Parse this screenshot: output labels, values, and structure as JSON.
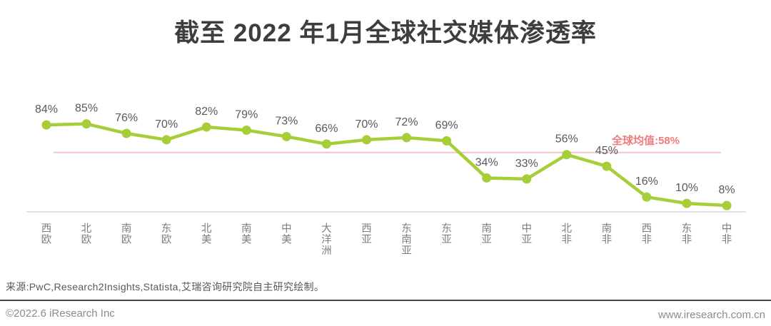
{
  "title": "截至 2022 年1月全球社交媒体渗透率",
  "chart_data": {
    "type": "line",
    "title": "截至 2022 年1月全球社交媒体渗透率",
    "categories": [
      "西欧",
      "北欧",
      "南欧",
      "东欧",
      "北美",
      "南美",
      "中美",
      "大洋洲",
      "西亚",
      "东南亚",
      "东亚",
      "南亚",
      "中亚",
      "北非",
      "南非",
      "西非",
      "东非",
      "中非"
    ],
    "values": [
      84,
      85,
      76,
      70,
      82,
      79,
      73,
      66,
      70,
      72,
      69,
      34,
      33,
      56,
      45,
      16,
      10,
      8
    ],
    "label_suffix": "%",
    "xlabel": "",
    "ylabel": "",
    "ylim": [
      0,
      100
    ],
    "grid": false,
    "legend": "none",
    "reference_line": {
      "value": 58,
      "label": "全球均值:58%"
    },
    "colors": {
      "line": "#a5ce39",
      "point": "#a5ce39",
      "data_label": "#595959",
      "reference_line": "#f3c5ca",
      "reference_label": "#ef7b7b",
      "axis_line": "#d9d9d9",
      "tick_label": "#7f7f7f"
    }
  },
  "footer": {
    "source": "来源:PwC,Research2Insights,Statista,艾瑞咨询研究院自主研究绘制。",
    "copyright": "©2022.6 iResearch Inc",
    "website": "www.iresearch.com.cn"
  }
}
